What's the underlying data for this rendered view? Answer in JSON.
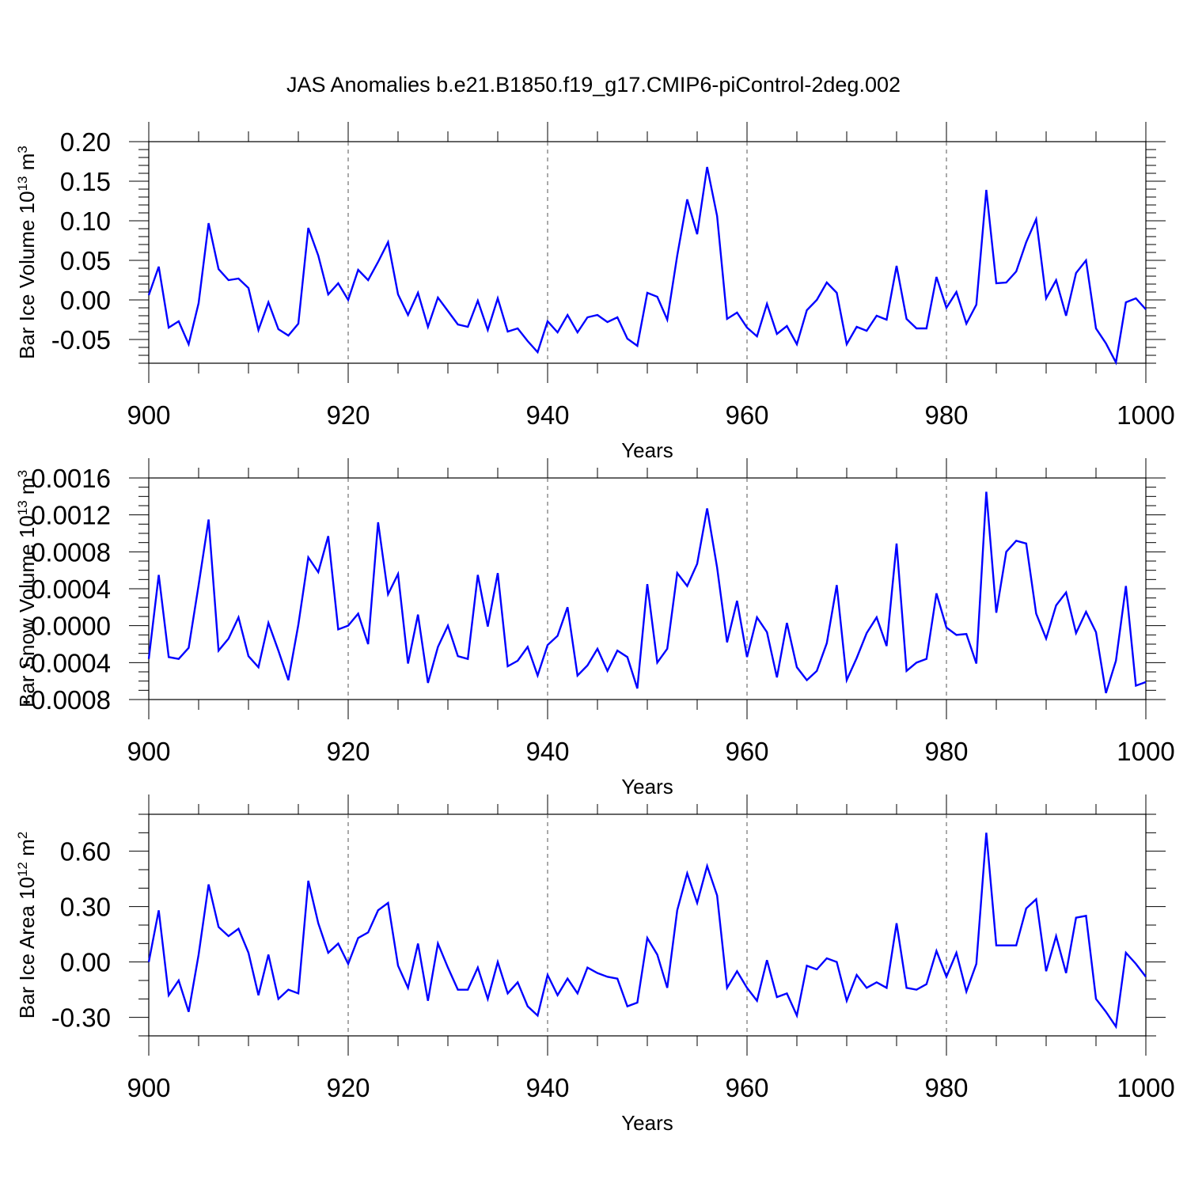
{
  "chart_data": [
    {
      "type": "line",
      "title": "JAS Anomalies b.e21.B1850.f19_g17.CMIP6-piControl-2deg.002",
      "xlabel": "Years",
      "ylabel": "Bar Ice Volume 10",
      "ylabel_sup": "13",
      "ylabel_unit": " m",
      "ylabel_unit_sup": "3",
      "xlim": [
        900,
        1000
      ],
      "ylim": [
        -0.08,
        0.2
      ],
      "xticks": [
        900,
        920,
        940,
        960,
        980,
        1000
      ],
      "yticks": [
        0.2,
        0.15,
        0.1,
        0.05,
        0.0,
        -0.05
      ],
      "ytick_labels": [
        "0.20",
        "0.15",
        "0.10",
        "0.05",
        "0.00",
        "-0.05"
      ],
      "y_minor_step": 0.01,
      "grid": "x dashed",
      "x_start": 900,
      "series": [
        {
          "name": "Bar Ice Volume",
          "color": "#0000ff",
          "values": [
            0.006,
            0.042,
            -0.035,
            -0.027,
            -0.056,
            -0.004,
            0.097,
            0.039,
            0.025,
            0.027,
            0.015,
            -0.038,
            -0.003,
            -0.037,
            -0.045,
            -0.03,
            0.091,
            0.056,
            0.007,
            0.021,
            0.0,
            0.038,
            0.025,
            0.048,
            0.073,
            0.007,
            -0.019,
            0.009,
            -0.034,
            0.003,
            -0.014,
            -0.031,
            -0.034,
            -0.001,
            -0.038,
            0.002,
            -0.04,
            -0.036,
            -0.052,
            -0.066,
            -0.027,
            -0.041,
            -0.019,
            -0.041,
            -0.022,
            -0.019,
            -0.028,
            -0.022,
            -0.049,
            -0.058,
            0.009,
            0.004,
            -0.025,
            0.056,
            0.127,
            0.083,
            0.168,
            0.106,
            -0.024,
            -0.016,
            -0.035,
            -0.046,
            -0.005,
            -0.043,
            -0.033,
            -0.056,
            -0.013,
            0.0,
            0.022,
            0.009,
            -0.056,
            -0.034,
            -0.039,
            -0.02,
            -0.025,
            0.043,
            -0.024,
            -0.036,
            -0.036,
            0.029,
            -0.01,
            0.01,
            -0.03,
            -0.006,
            0.139,
            0.021,
            0.022,
            0.036,
            0.073,
            0.102,
            0.002,
            0.025,
            -0.02,
            0.034,
            0.05,
            -0.036,
            -0.055,
            -0.079,
            -0.003,
            0.002,
            -0.012
          ]
        }
      ]
    },
    {
      "type": "line",
      "xlabel": "Years",
      "ylabel": "Bar Snow Volume 10",
      "ylabel_sup": "13",
      "ylabel_unit": " m",
      "ylabel_unit_sup": "3",
      "xlim": [
        900,
        1000
      ],
      "ylim": [
        -0.0008,
        0.0016
      ],
      "xticks": [
        900,
        920,
        940,
        960,
        980,
        1000
      ],
      "yticks": [
        0.0016,
        0.0012,
        0.0008,
        0.0004,
        0.0,
        -0.0004,
        -0.0008
      ],
      "ytick_labels": [
        "0.0016",
        "0.0012",
        "0.0008",
        "0.0004",
        "0.0000",
        "-0.0004",
        "-0.0008"
      ],
      "y_minor_step": 0.0001,
      "grid": "x dashed",
      "x_start": 900,
      "series": [
        {
          "name": "Bar Snow Volume",
          "color": "#0000ff",
          "values": [
            -0.00036,
            0.00055,
            -0.00034,
            -0.00036,
            -0.00024,
            0.00044,
            0.00115,
            -0.00027,
            -0.00014,
            9e-05,
            -0.00033,
            -0.00045,
            3e-05,
            -0.00027,
            -0.00059,
            1e-05,
            0.00074,
            0.00058,
            0.00097,
            -4e-05,
            0.0,
            0.00013,
            -0.0002,
            0.00112,
            0.00034,
            0.00056,
            -0.00041,
            0.00012,
            -0.00062,
            -0.00023,
            0.0,
            -0.00033,
            -0.00036,
            0.00055,
            -1e-05,
            0.00057,
            -0.00044,
            -0.00038,
            -0.00023,
            -0.00054,
            -0.00021,
            -0.00011,
            0.0002,
            -0.00054,
            -0.00043,
            -0.00025,
            -0.00049,
            -0.00027,
            -0.00034,
            -0.00068,
            0.00045,
            -0.0004,
            -0.00025,
            0.00057,
            0.00043,
            0.00067,
            0.00127,
            0.00063,
            -0.00018,
            0.00027,
            -0.00034,
            9e-05,
            -7e-05,
            -0.00056,
            3e-05,
            -0.00045,
            -0.00059,
            -0.00049,
            -0.00019,
            0.00044,
            -0.00059,
            -0.00035,
            -8e-05,
            9e-05,
            -0.00022,
            0.00089,
            -0.00049,
            -0.0004,
            -0.00036,
            0.00035,
            -2e-05,
            -0.0001,
            -9e-05,
            -0.00041,
            0.00145,
            0.00014,
            0.0008,
            0.00092,
            0.00089,
            0.00013,
            -0.00014,
            0.00022,
            0.00036,
            -8e-05,
            0.00015,
            -7e-05,
            -0.00073,
            -0.00038,
            0.00043,
            -0.00065,
            -0.00061
          ]
        }
      ]
    },
    {
      "type": "line",
      "xlabel": "Years",
      "ylabel": "Bar Ice Area 10",
      "ylabel_sup": "12",
      "ylabel_unit": " m",
      "ylabel_unit_sup": "2",
      "xlim": [
        900,
        1000
      ],
      "ylim": [
        -0.4,
        0.8
      ],
      "xticks": [
        900,
        920,
        940,
        960,
        980,
        1000
      ],
      "yticks": [
        0.6,
        0.3,
        0.0,
        -0.3
      ],
      "ytick_labels": [
        "0.60",
        "0.30",
        "0.00",
        "-0.30"
      ],
      "y_minor_step": 0.1,
      "grid": "x dashed",
      "x_start": 900,
      "series": [
        {
          "name": "Bar Ice Area",
          "color": "#0000ff",
          "values": [
            0.0,
            0.28,
            -0.18,
            -0.1,
            -0.27,
            0.04,
            0.42,
            0.19,
            0.14,
            0.18,
            0.05,
            -0.18,
            0.04,
            -0.2,
            -0.15,
            -0.17,
            0.44,
            0.21,
            0.05,
            0.1,
            -0.01,
            0.13,
            0.16,
            0.28,
            0.32,
            -0.02,
            -0.14,
            0.1,
            -0.21,
            0.1,
            -0.03,
            -0.15,
            -0.15,
            -0.03,
            -0.2,
            0.0,
            -0.17,
            -0.11,
            -0.24,
            -0.29,
            -0.07,
            -0.18,
            -0.09,
            -0.17,
            -0.03,
            -0.06,
            -0.08,
            -0.09,
            -0.24,
            -0.22,
            0.13,
            0.04,
            -0.14,
            0.28,
            0.48,
            0.32,
            0.52,
            0.36,
            -0.14,
            -0.05,
            -0.14,
            -0.21,
            0.01,
            -0.19,
            -0.17,
            -0.29,
            -0.02,
            -0.04,
            0.02,
            0.0,
            -0.21,
            -0.07,
            -0.14,
            -0.11,
            -0.14,
            0.21,
            -0.14,
            -0.15,
            -0.12,
            0.06,
            -0.08,
            0.05,
            -0.16,
            -0.01,
            0.7,
            0.09,
            0.09,
            0.09,
            0.29,
            0.34,
            -0.05,
            0.14,
            -0.06,
            0.24,
            0.25,
            -0.2,
            -0.27,
            -0.35,
            0.05,
            -0.01,
            -0.08
          ]
        }
      ]
    }
  ]
}
